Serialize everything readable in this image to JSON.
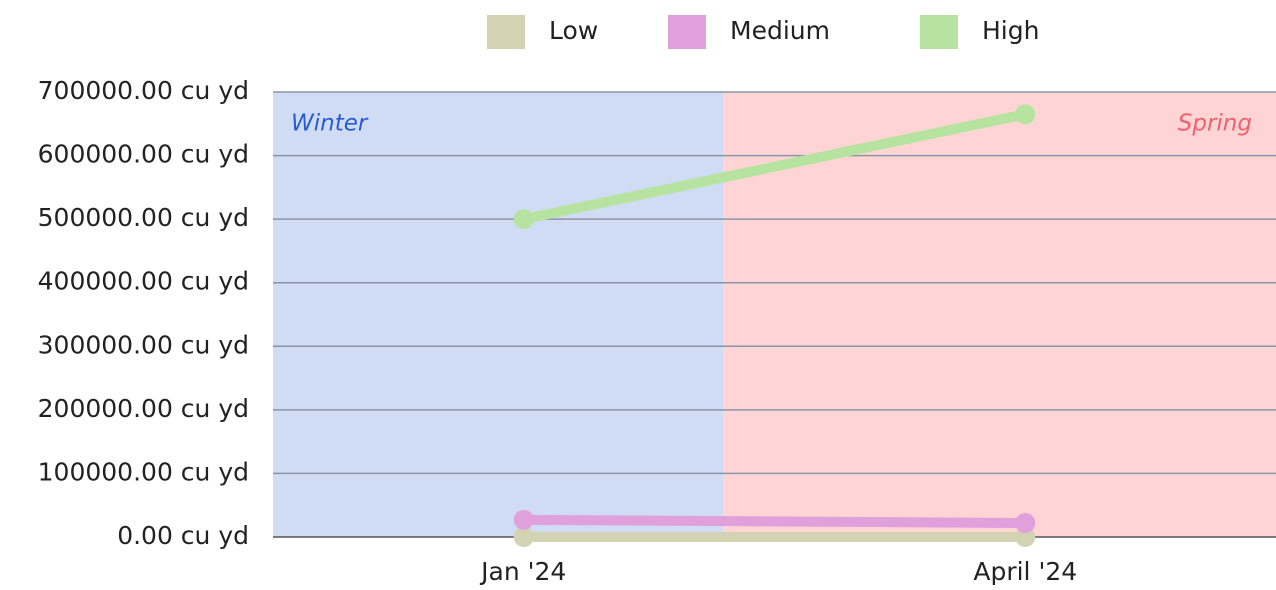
{
  "chart_data": {
    "type": "line",
    "categories": [
      "Jan '24",
      "April '24"
    ],
    "series": [
      {
        "name": "Low",
        "color": "#d3d3b4",
        "values": [
          0,
          0
        ]
      },
      {
        "name": "Medium",
        "color": "#e0a0dc",
        "values": [
          27000,
          22000
        ]
      },
      {
        "name": "High",
        "color": "#b6e3a0",
        "values": [
          500000,
          665000
        ]
      }
    ],
    "bands": [
      {
        "label": "Winter",
        "color": "#cfdcf4",
        "text_color": "#2a5bd0"
      },
      {
        "label": "Spring",
        "color": "#ffd4d4",
        "text_color": "#f06070"
      }
    ],
    "ylim": [
      0,
      700000
    ],
    "yticks": [
      {
        "value": 0,
        "label": "0.00 cu yd"
      },
      {
        "value": 100000,
        "label": "100000.00 cu yd"
      },
      {
        "value": 200000,
        "label": "200000.00 cu yd"
      },
      {
        "value": 300000,
        "label": "300000.00 cu yd"
      },
      {
        "value": 400000,
        "label": "400000.00 cu yd"
      },
      {
        "value": 500000,
        "label": "500000.00 cu yd"
      },
      {
        "value": 600000,
        "label": "600000.00 cu yd"
      },
      {
        "value": 700000,
        "label": "700000.00 cu yd"
      }
    ],
    "grid": true,
    "legend": "top"
  }
}
